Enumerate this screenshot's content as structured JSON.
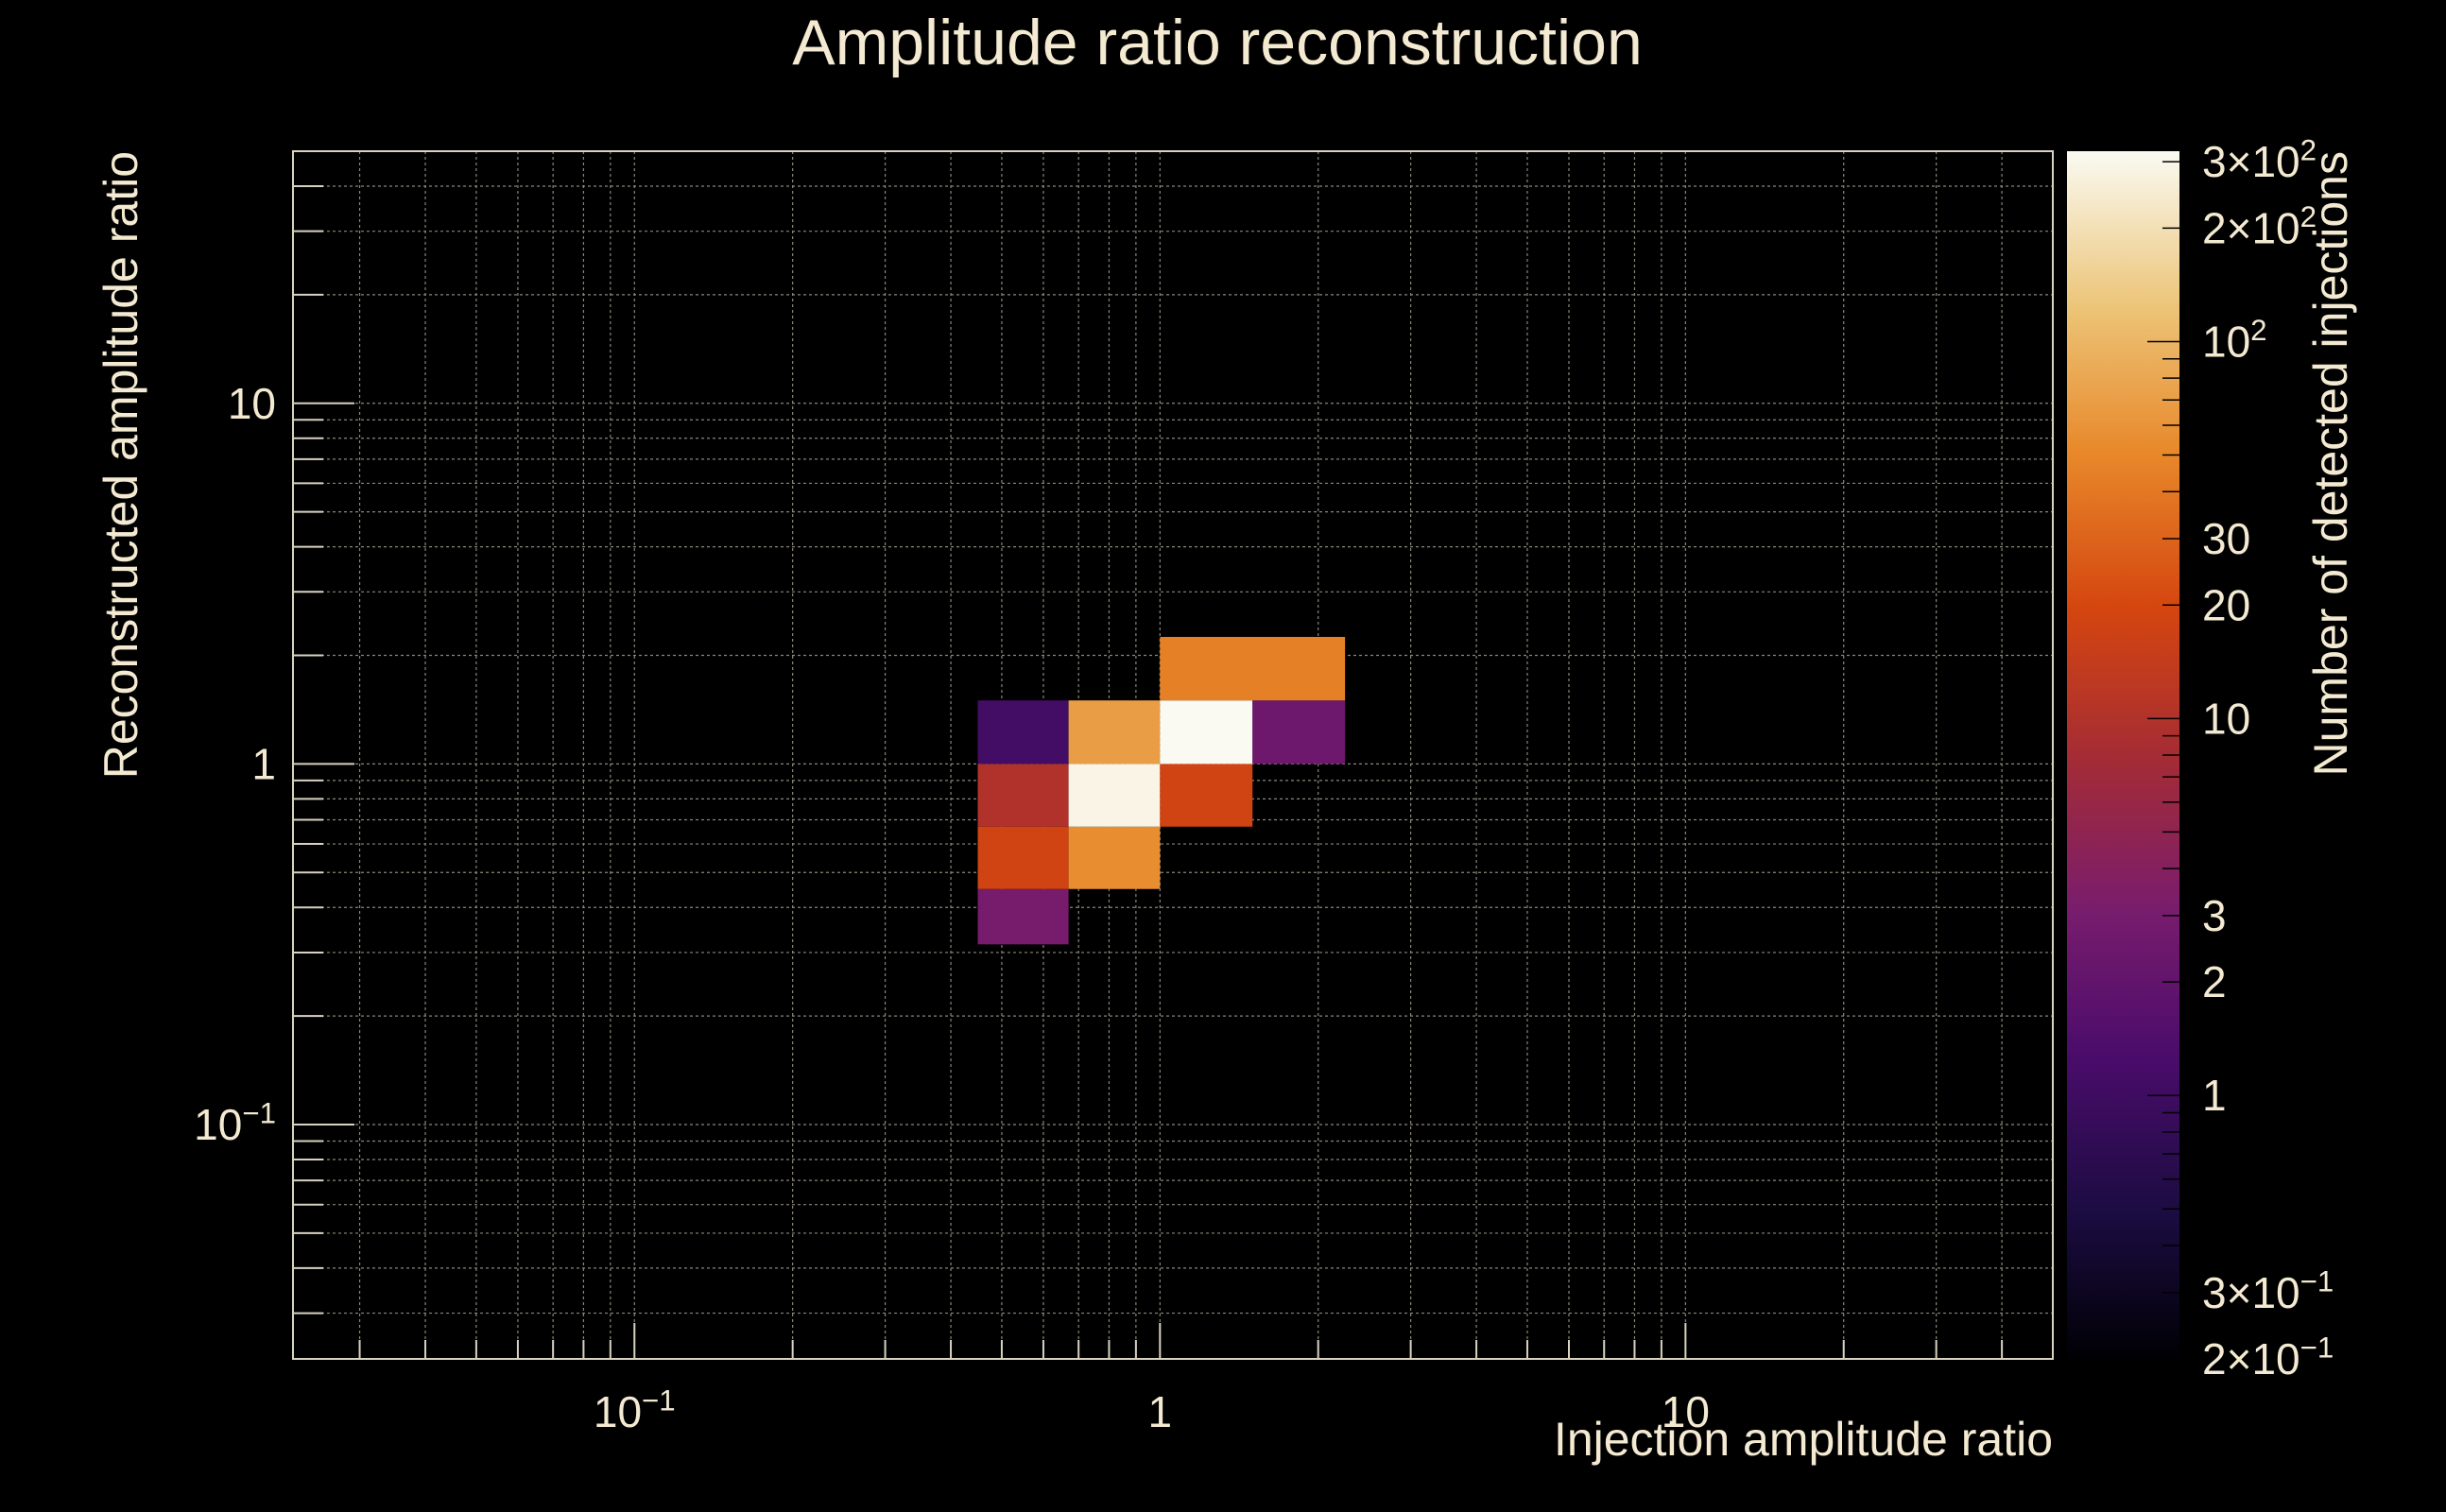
{
  "chart_data": {
    "type": "heatmap",
    "title": "Amplitude ratio reconstruction",
    "xlabel": "Injection amplitude ratio",
    "ylabel": "Reconstructed amplitude ratio",
    "zlabel": "Number of detected injections",
    "x_scale": "log",
    "y_scale": "log",
    "z_scale": "log",
    "xlim": [
      0.0224,
      50
    ],
    "ylim": [
      0.0224,
      50
    ],
    "zlim": [
      0.2,
      320
    ],
    "grid": true,
    "colormap": "inferno",
    "x_ticks": [
      {
        "base": "10",
        "exp": "−1",
        "value": 0.1
      },
      {
        "base": "1",
        "exp": "",
        "value": 1
      },
      {
        "base": "10",
        "exp": "",
        "value": 10
      }
    ],
    "y_ticks": [
      {
        "base": "10",
        "exp": "",
        "value": 10
      },
      {
        "base": "1",
        "exp": "",
        "value": 1
      },
      {
        "base": "10",
        "exp": "−1",
        "value": 0.1
      }
    ],
    "z_ticks": [
      {
        "base": "3×10",
        "exp": "2",
        "value": 300
      },
      {
        "base": "2×10",
        "exp": "2",
        "value": 200
      },
      {
        "base": "10",
        "exp": "2",
        "value": 100
      },
      {
        "base": "30",
        "exp": "",
        "value": 30
      },
      {
        "base": "20",
        "exp": "",
        "value": 20
      },
      {
        "base": "10",
        "exp": "",
        "value": 10
      },
      {
        "base": "3",
        "exp": "",
        "value": 3
      },
      {
        "base": "2",
        "exp": "",
        "value": 2
      },
      {
        "base": "1",
        "exp": "",
        "value": 1
      },
      {
        "base": "3×10",
        "exp": "−1",
        "value": 0.3
      },
      {
        "base": "2×10",
        "exp": "−1",
        "value": 0.2
      }
    ],
    "cells": [
      {
        "x0": 0.45,
        "x1": 0.67,
        "y0": 0.316,
        "y1": 0.45,
        "value": 3
      },
      {
        "x0": 0.45,
        "x1": 0.67,
        "y0": 0.45,
        "y1": 0.67,
        "value": 18
      },
      {
        "x0": 0.67,
        "x1": 1.0,
        "y0": 0.45,
        "y1": 0.67,
        "value": 55
      },
      {
        "x0": 0.45,
        "x1": 0.67,
        "y0": 0.67,
        "y1": 1.0,
        "value": 10
      },
      {
        "x0": 0.67,
        "x1": 1.0,
        "y0": 0.67,
        "y1": 1.0,
        "value": 290
      },
      {
        "x0": 1.0,
        "x1": 1.5,
        "y0": 0.67,
        "y1": 1.0,
        "value": 18
      },
      {
        "x0": 0.45,
        "x1": 0.67,
        "y0": 1.0,
        "y1": 1.5,
        "value": 1.1
      },
      {
        "x0": 0.67,
        "x1": 1.0,
        "y0": 1.0,
        "y1": 1.5,
        "value": 70
      },
      {
        "x0": 1.0,
        "x1": 1.5,
        "y0": 1.0,
        "y1": 1.5,
        "value": 320
      },
      {
        "x0": 1.5,
        "x1": 2.25,
        "y0": 1.0,
        "y1": 1.5,
        "value": 2.5
      },
      {
        "x0": 1.0,
        "x1": 2.25,
        "y0": 1.5,
        "y1": 2.25,
        "value": 45
      }
    ]
  }
}
